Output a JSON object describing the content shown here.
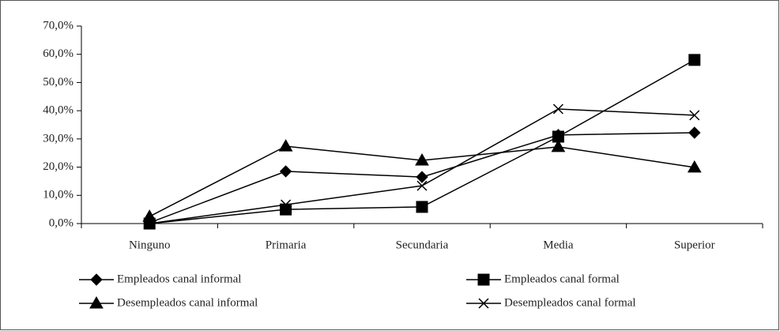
{
  "chart_data": {
    "type": "line",
    "categories": [
      "Ninguno",
      "Primaria",
      "Secundaria",
      "Media",
      "Superior"
    ],
    "series": [
      {
        "name": "Empleados canal informal",
        "color": "#000000",
        "marker": "diamond",
        "values": [
          0.3,
          18.5,
          16.5,
          31.4,
          32.2
        ]
      },
      {
        "name": "Empleados canal formal",
        "color": "#000000",
        "marker": "square",
        "values": [
          0.0,
          5.0,
          5.9,
          30.8,
          58.0
        ]
      },
      {
        "name": "Desempleados canal informal",
        "color": "#000000",
        "marker": "triangle",
        "values": [
          2.5,
          27.4,
          22.4,
          27.2,
          19.9
        ]
      },
      {
        "name": "Desempleados canal formal",
        "color": "#000000",
        "marker": "x",
        "values": [
          0.0,
          6.7,
          13.4,
          40.6,
          38.4
        ]
      }
    ],
    "ylim": [
      0,
      70
    ],
    "yticks": [
      {
        "value": 0,
        "label": "0,0%"
      },
      {
        "value": 10,
        "label": "10,0%"
      },
      {
        "value": 20,
        "label": "20,0%"
      },
      {
        "value": 30,
        "label": "30,0%"
      },
      {
        "value": 40,
        "label": "40,0%"
      },
      {
        "value": 50,
        "label": "50,0%"
      },
      {
        "value": 60,
        "label": "60,0%"
      },
      {
        "value": 70,
        "label": "70,0%"
      }
    ],
    "grid": false
  }
}
